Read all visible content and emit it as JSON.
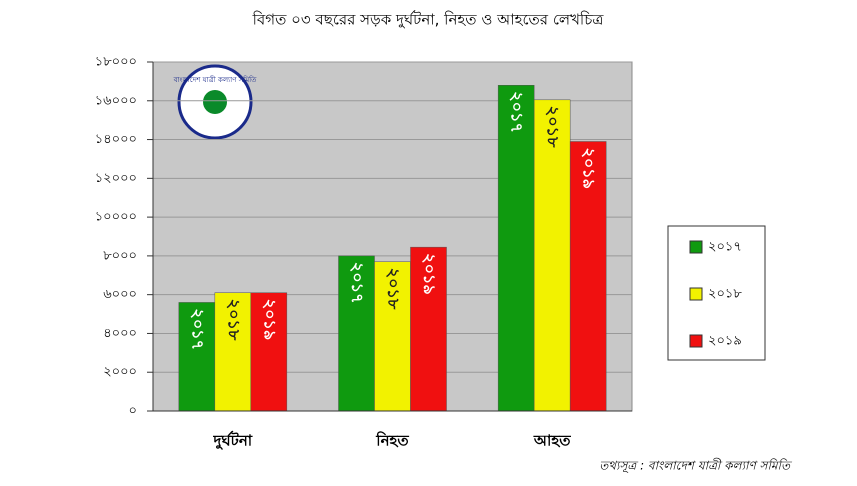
{
  "chart_data": {
    "type": "bar",
    "title": "বিগত ০৩ বছরের সড়ক দুর্ঘটনা, নিহত ও আহতের লেখচিত্র",
    "logo_text": "বাংলাদেশ যাত্রী কল্যাণ সমিতি",
    "source": "তথ্যসূত্র : বাংলাদেশ যাত্রী কল্যাণ সমিতি",
    "categories": [
      "দুর্ঘটনা",
      "নিহত",
      "আহত"
    ],
    "series": [
      {
        "name": "২০১৭",
        "color": "#0f9a0f",
        "values": [
          5600,
          8000,
          16800
        ]
      },
      {
        "name": "২০১৮",
        "color": "#f2f200",
        "values": [
          6100,
          7700,
          16050
        ]
      },
      {
        "name": "২০১৯",
        "color": "#f01010",
        "values": [
          6100,
          8450,
          13900
        ]
      }
    ],
    "ylim": [
      0,
      18000
    ],
    "yticks": [
      {
        "value": 0,
        "label": "০"
      },
      {
        "value": 2000,
        "label": "২০০০"
      },
      {
        "value": 4000,
        "label": "৪০০০"
      },
      {
        "value": 6000,
        "label": "৬০০০"
      },
      {
        "value": 8000,
        "label": "৮০০০"
      },
      {
        "value": 10000,
        "label": "১০০০০"
      },
      {
        "value": 12000,
        "label": "১২০০০"
      },
      {
        "value": 14000,
        "label": "১৪০০০"
      },
      {
        "value": 16000,
        "label": "১৬০০০"
      },
      {
        "value": 18000,
        "label": "১৮০০০"
      }
    ],
    "grid": true,
    "legend": "right"
  }
}
